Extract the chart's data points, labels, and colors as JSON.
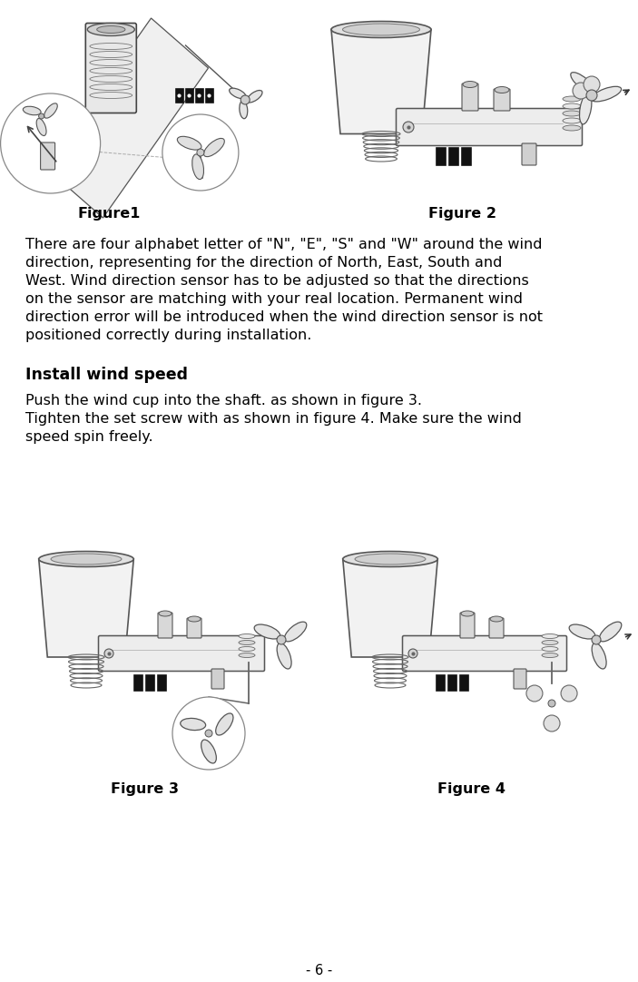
{
  "bg_color": "#ffffff",
  "text_color": "#000000",
  "page_number": "- 6 -",
  "figure1_label": "Figure1",
  "figure2_label": "Figure 2",
  "figure3_label": "Figure 3",
  "figure4_label": "Figure 4",
  "paragraph1_lines": [
    "There are four alphabet letter of \"N\", \"E\", \"S\" and \"W\" around the wind",
    "direction, representing for the direction of North, East, South and",
    "West. Wind direction sensor has to be adjusted so that the directions",
    "on the sensor are matching with your real location. Permanent wind",
    "direction error will be introduced when the wind direction sensor is not",
    "positioned correctly during installation."
  ],
  "heading": "Install wind speed",
  "paragraph2_lines": [
    "Push the wind cup into the shaft. as shown in figure 3.",
    "Tighten the set screw with as shown in figure 4. Make sure the wind",
    "speed spin freely."
  ],
  "body_fontsize": 11.5,
  "heading_fontsize": 12.5,
  "label_fontsize": 11.5,
  "page_num_fontsize": 10.5
}
